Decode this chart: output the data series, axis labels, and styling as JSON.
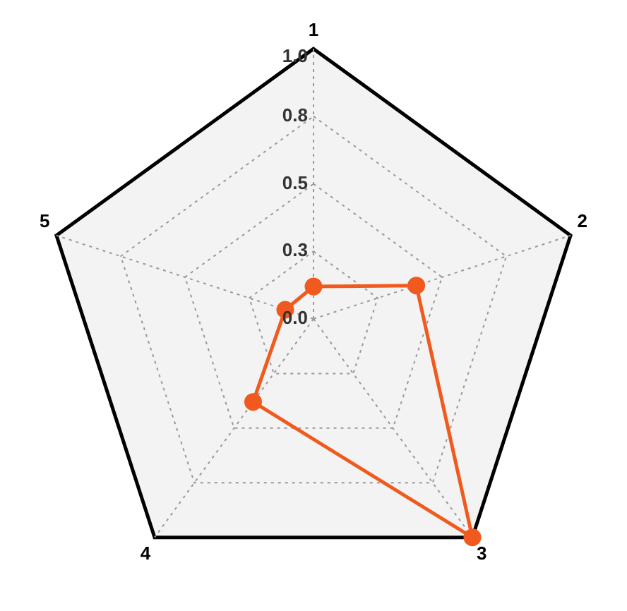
{
  "chart_data": {
    "type": "radar",
    "categories": [
      "1",
      "2",
      "3",
      "4",
      "5"
    ],
    "series": [
      {
        "color": "#f05a1e",
        "values": [
          0.12,
          0.4,
          1.0,
          0.38,
          0.11
        ]
      }
    ],
    "ylim": [
      0,
      1
    ],
    "yticks": [
      {
        "value": 0,
        "label": "0.0"
      },
      {
        "value": 0.25,
        "label": "0.3"
      },
      0.5,
      {
        "value": 0.75,
        "label": "0.8"
      },
      {
        "value": 1,
        "label": "1.0"
      }
    ],
    "grid": true,
    "marker": "circle",
    "line_style": "solid"
  }
}
